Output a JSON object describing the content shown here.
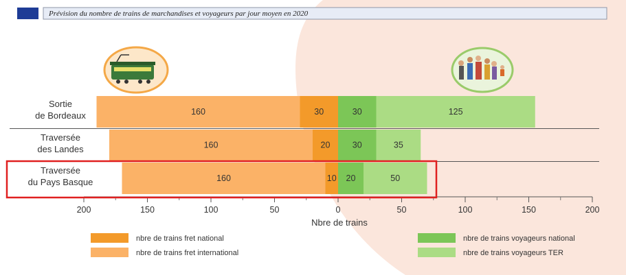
{
  "chart_data": {
    "type": "bar",
    "orientation": "horizontal-diverging",
    "title": "Prévision du nombre de trains de marchandises et voyageurs par jour moyen en 2020",
    "xlabel": "Nbre de trains",
    "xlim": [
      -200,
      200
    ],
    "xticks": [
      "200",
      "150",
      "100",
      "50",
      "0",
      "50",
      "100",
      "150",
      "200"
    ],
    "categories": [
      [
        "Sortie",
        "de Bordeaux"
      ],
      [
        "Traversée",
        "des Landes"
      ],
      [
        "Traversée",
        "du Pays Basque"
      ]
    ],
    "series": [
      {
        "name": "nbre de trains fret national",
        "side": "left",
        "color": "#f39a2a",
        "values": [
          30,
          20,
          10
        ]
      },
      {
        "name": "nbre de trains fret international",
        "side": "left",
        "color": "#fbb267",
        "values": [
          160,
          160,
          160
        ]
      },
      {
        "name": "nbre de trains voyageurs national",
        "side": "right",
        "color": "#7cc657",
        "values": [
          30,
          30,
          20
        ]
      },
      {
        "name": "nbre de trains voyageurs TER",
        "side": "right",
        "color": "#abdc84",
        "values": [
          125,
          35,
          50
        ]
      }
    ],
    "highlighted_category": 2,
    "highlight_color": "#e02020",
    "background_left": "#ffffff",
    "background_right": "#fbe6dc",
    "title_badge_color": "#1e3c96",
    "icons": [
      "freight-train-icon",
      "passengers-icon"
    ]
  }
}
